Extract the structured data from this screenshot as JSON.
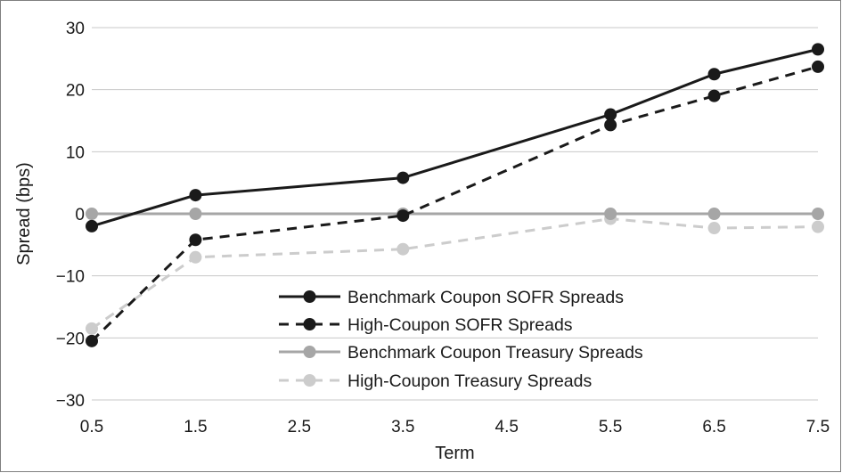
{
  "chart_data": {
    "type": "line",
    "title": "",
    "xlabel": "Term",
    "ylabel": "Spread (bps)",
    "x_ticks": [
      "0.5",
      "1.5",
      "2.5",
      "3.5",
      "4.5",
      "5.5",
      "6.5",
      "7.5"
    ],
    "xlim": [
      0.5,
      7.5
    ],
    "y_ticks": [
      "30",
      "20",
      "10",
      "0",
      "−10",
      "−20",
      "−30"
    ],
    "y_tick_values": [
      30,
      20,
      10,
      0,
      -10,
      -20,
      -30
    ],
    "ylim": [
      -30,
      30
    ],
    "grid": "horizontal",
    "legend_position": "bottom-center",
    "series": [
      {
        "name": "Benchmark Coupon SOFR Spreads",
        "color": "#1a1a1a",
        "line_style": "solid",
        "points": [
          {
            "x": 0.5,
            "y": -2
          },
          {
            "x": 1.5,
            "y": 3
          },
          {
            "x": 3.5,
            "y": 5.8
          },
          {
            "x": 5.5,
            "y": 16
          },
          {
            "x": 6.5,
            "y": 22.5
          },
          {
            "x": 7.5,
            "y": 26.5
          }
        ]
      },
      {
        "name": "High-Coupon SOFR Spreads",
        "color": "#1a1a1a",
        "line_style": "dashed",
        "points": [
          {
            "x": 0.5,
            "y": -20.5
          },
          {
            "x": 1.5,
            "y": -4.2
          },
          {
            "x": 3.5,
            "y": -0.3
          },
          {
            "x": 5.5,
            "y": 14.3
          },
          {
            "x": 6.5,
            "y": 19
          },
          {
            "x": 7.5,
            "y": 23.7
          }
        ]
      },
      {
        "name": "Benchmark Coupon Treasury Spreads",
        "color": "#a6a6a6",
        "line_style": "solid",
        "points": [
          {
            "x": 0.5,
            "y": 0
          },
          {
            "x": 1.5,
            "y": 0
          },
          {
            "x": 3.5,
            "y": 0
          },
          {
            "x": 5.5,
            "y": 0
          },
          {
            "x": 6.5,
            "y": 0
          },
          {
            "x": 7.5,
            "y": 0
          }
        ]
      },
      {
        "name": "High-Coupon Treasury Spreads",
        "color": "#cccccc",
        "line_style": "dashed",
        "points": [
          {
            "x": 0.5,
            "y": -18.5
          },
          {
            "x": 1.5,
            "y": -7
          },
          {
            "x": 3.5,
            "y": -5.7
          },
          {
            "x": 5.5,
            "y": -0.8
          },
          {
            "x": 6.5,
            "y": -2.3
          },
          {
            "x": 7.5,
            "y": -2.1
          }
        ]
      }
    ]
  }
}
